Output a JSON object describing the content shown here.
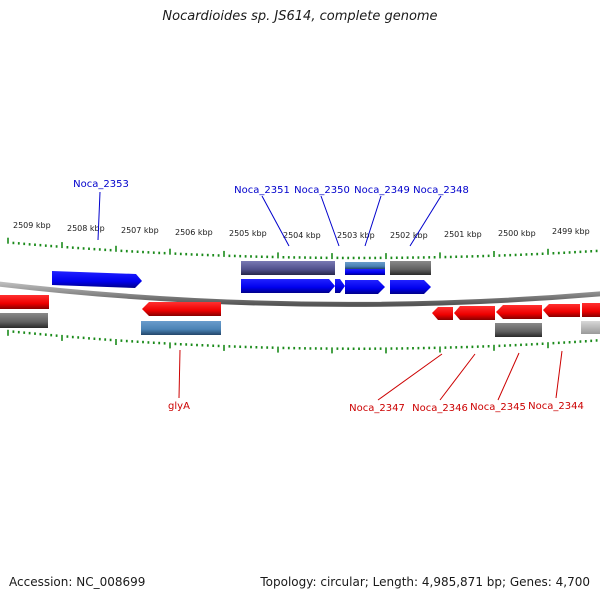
{
  "title": "Nocardioides sp. JS614, complete genome",
  "accession_label": "Accession: NC_008699",
  "summary_label": "Topology: circular; Length: 4,985,871 bp; Genes: 4,700",
  "colors": {
    "forward_strand": "#0000ee",
    "reverse_strand": "#ee0000",
    "tick": "#1a8a1a",
    "backbone": "#888888",
    "rna_like": "#4a82b4",
    "grey_feature": "#6a6a6a",
    "purple_feature": "#5a5a9a"
  },
  "scale_labels": [
    "2509 kbp",
    "2508 kbp",
    "2507 kbp",
    "2506 kbp",
    "2505 kbp",
    "2504 kbp",
    "2503 kbp",
    "2502 kbp",
    "2501 kbp",
    "2500 kbp",
    "2499 kbp"
  ],
  "forward_genes": [
    "Noca_2353",
    "Noca_2351",
    "Noca_2350",
    "Noca_2349",
    "Noca_2348"
  ],
  "reverse_genes": [
    "glyA",
    "Noca_2347",
    "Noca_2346",
    "Noca_2345",
    "Noca_2344"
  ]
}
